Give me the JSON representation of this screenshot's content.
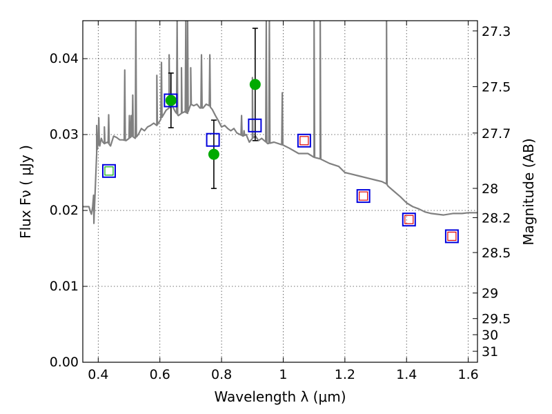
{
  "chart_data": {
    "type": "scatter",
    "xlabel": "Wavelength  λ (μm)",
    "ylabel": "Flux  Fν  ( μJy )",
    "ylabel_right": "Magnitude (AB)",
    "xlim": [
      0.35,
      1.63
    ],
    "ylim": [
      0.0,
      0.045
    ],
    "grid": true,
    "x_ticks": [
      0.4,
      0.6,
      0.8,
      1.0,
      1.2,
      1.4,
      1.6
    ],
    "x_tick_labels": [
      "0.4",
      "0.6",
      "0.8",
      "1",
      "1.2",
      "1.4",
      "1.6"
    ],
    "y_ticks": [
      0.0,
      0.01,
      0.02,
      0.03,
      0.04
    ],
    "y_tick_labels": [
      "0.00",
      "0.01",
      "0.02",
      "0.03",
      "0.04"
    ],
    "mag_ticks": [
      27.3,
      27.5,
      27.7,
      28,
      28.2,
      28.5,
      29,
      29.5,
      30,
      31
    ],
    "mag_tick_labels": [
      "27.3",
      "27.5",
      "27.7",
      "28",
      "28.2",
      "28.5",
      "29",
      "29.5",
      "30",
      "31"
    ],
    "colors": {
      "spectrum": "#808080",
      "observed": "#00aa00",
      "model_box": "#0000dd",
      "inner_red": "#dd0000",
      "inner_green": "#00aa00",
      "errorbar": "#000000"
    },
    "series": [
      {
        "kind": "line",
        "x": [
          0.35,
          0.37,
          0.375,
          0.378,
          0.382,
          0.385,
          0.387,
          0.39,
          0.395,
          0.4,
          0.405,
          0.41,
          0.415,
          0.42,
          0.43,
          0.44,
          0.45,
          0.46,
          0.47,
          0.48,
          0.49,
          0.5,
          0.51,
          0.52,
          0.53,
          0.54,
          0.55,
          0.56,
          0.57,
          0.58,
          0.59,
          0.6,
          0.61,
          0.62,
          0.63,
          0.64,
          0.65,
          0.66,
          0.67,
          0.68,
          0.69,
          0.7,
          0.71,
          0.72,
          0.73,
          0.74,
          0.75,
          0.76,
          0.77,
          0.78,
          0.79,
          0.8,
          0.81,
          0.82,
          0.83,
          0.84,
          0.85,
          0.86,
          0.87,
          0.88,
          0.89,
          0.9,
          0.91,
          0.92,
          0.93,
          0.95,
          0.97,
          1.0,
          1.02,
          1.05,
          1.08,
          1.1,
          1.12,
          1.15,
          1.18,
          1.2,
          1.22,
          1.25,
          1.28,
          1.3,
          1.32,
          1.33,
          1.335,
          1.34,
          1.36,
          1.38,
          1.4,
          1.42,
          1.44,
          1.46,
          1.48,
          1.5,
          1.52,
          1.55,
          1.58,
          1.6,
          1.63
        ],
        "y": [
          0.0205,
          0.0205,
          0.0198,
          0.0195,
          0.0205,
          0.022,
          0.0195,
          0.0225,
          0.0275,
          0.029,
          0.0285,
          0.0295,
          0.029,
          0.0288,
          0.029,
          0.0285,
          0.0298,
          0.0296,
          0.0293,
          0.0293,
          0.0292,
          0.0295,
          0.0298,
          0.0295,
          0.03,
          0.0308,
          0.0305,
          0.031,
          0.0312,
          0.0315,
          0.0312,
          0.0318,
          0.0325,
          0.0332,
          0.0335,
          0.0338,
          0.033,
          0.0325,
          0.0328,
          0.033,
          0.0328,
          0.034,
          0.0338,
          0.034,
          0.0335,
          0.0335,
          0.034,
          0.0338,
          0.0333,
          0.0325,
          0.0318,
          0.031,
          0.0312,
          0.0308,
          0.0305,
          0.0308,
          0.0302,
          0.03,
          0.0298,
          0.03,
          0.029,
          0.0295,
          0.0298,
          0.0292,
          0.0295,
          0.0288,
          0.029,
          0.0286,
          0.0282,
          0.0275,
          0.0275,
          0.027,
          0.0268,
          0.0262,
          0.0258,
          0.025,
          0.0248,
          0.0245,
          0.0242,
          0.024,
          0.0238,
          0.0236,
          0.0235,
          0.0232,
          0.0225,
          0.0218,
          0.021,
          0.0205,
          0.0202,
          0.0198,
          0.0196,
          0.0195,
          0.0194,
          0.0196,
          0.0196,
          0.0197,
          0.0197
        ],
        "peaks": [
          {
            "x": 0.386,
            "y": 0.0183
          },
          {
            "x": 0.395,
            "y": 0.0312
          },
          {
            "x": 0.402,
            "y": 0.0322
          },
          {
            "x": 0.41,
            "y": 0.0295
          },
          {
            "x": 0.42,
            "y": 0.031
          },
          {
            "x": 0.434,
            "y": 0.0326
          },
          {
            "x": 0.486,
            "y": 0.0385
          },
          {
            "x": 0.501,
            "y": 0.0325
          },
          {
            "x": 0.507,
            "y": 0.0325
          },
          {
            "x": 0.512,
            "y": 0.0352
          },
          {
            "x": 0.522,
            "y": 0.045
          },
          {
            "x": 0.59,
            "y": 0.0378
          },
          {
            "x": 0.605,
            "y": 0.0395
          },
          {
            "x": 0.63,
            "y": 0.0405
          },
          {
            "x": 0.656,
            "y": 0.045
          },
          {
            "x": 0.67,
            "y": 0.0388
          },
          {
            "x": 0.684,
            "y": 0.045
          },
          {
            "x": 0.69,
            "y": 0.045
          },
          {
            "x": 0.7,
            "y": 0.0388
          },
          {
            "x": 0.735,
            "y": 0.0405
          },
          {
            "x": 0.762,
            "y": 0.0405
          },
          {
            "x": 0.865,
            "y": 0.0325
          },
          {
            "x": 0.873,
            "y": 0.0305
          },
          {
            "x": 0.9,
            "y": 0.0375
          },
          {
            "x": 0.945,
            "y": 0.045
          },
          {
            "x": 0.955,
            "y": 0.045
          },
          {
            "x": 0.997,
            "y": 0.0355
          },
          {
            "x": 1.1,
            "y": 0.045
          },
          {
            "x": 1.12,
            "y": 0.045
          },
          {
            "x": 1.335,
            "y": 0.045
          }
        ]
      },
      {
        "kind": "observed",
        "points": [
          {
            "x": 0.636,
            "y": 0.0345,
            "err": 0.0036
          },
          {
            "x": 0.775,
            "y": 0.0274,
            "err": 0.0045
          },
          {
            "x": 0.909,
            "y": 0.0366,
            "err": 0.0074
          }
        ]
      },
      {
        "kind": "model",
        "points": [
          {
            "x": 0.435,
            "y": 0.0252,
            "inner": "green"
          },
          {
            "x": 0.635,
            "y": 0.0345,
            "inner": "none"
          },
          {
            "x": 0.772,
            "y": 0.0293,
            "inner": "none"
          },
          {
            "x": 0.908,
            "y": 0.0312,
            "inner": "none"
          },
          {
            "x": 1.068,
            "y": 0.0292,
            "inner": "red"
          },
          {
            "x": 1.26,
            "y": 0.0219,
            "inner": "red"
          },
          {
            "x": 1.408,
            "y": 0.0188,
            "inner": "red"
          },
          {
            "x": 1.547,
            "y": 0.0166,
            "inner": "red"
          }
        ]
      }
    ]
  }
}
